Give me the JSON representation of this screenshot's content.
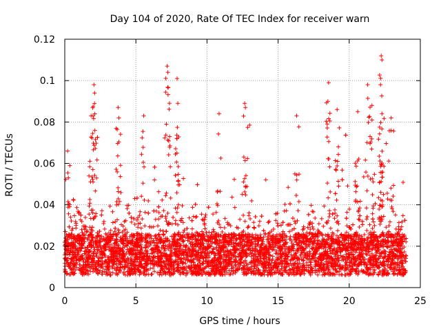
{
  "chart_data": {
    "type": "scatter",
    "title": "Day 104 of 2020, Rate Of TEC Index for receiver warn",
    "xlabel": "GPS time / hours",
    "ylabel": "ROTI / TECUs",
    "xlim": [
      0,
      25
    ],
    "ylim": [
      0,
      0.12
    ],
    "xticks": [
      0,
      5,
      10,
      15,
      20,
      25
    ],
    "yticks": [
      0,
      0.02,
      0.04,
      0.06,
      0.08,
      0.1,
      0.12
    ],
    "xtick_labels": [
      "0",
      "5",
      "10",
      "15",
      "20",
      "25"
    ],
    "ytick_labels": [
      "0",
      "0.02",
      "0.04",
      "0.06",
      "0.08",
      "0.1",
      "0.12"
    ],
    "grid": true,
    "marker": "+",
    "color": "#ff0000",
    "series": [
      {
        "name": "ROTI",
        "notable_peaks": [
          {
            "x": 0.2,
            "y": 0.066
          },
          {
            "x": 2.05,
            "y": 0.098
          },
          {
            "x": 2.1,
            "y": 0.094
          },
          {
            "x": 1.85,
            "y": 0.083
          },
          {
            "x": 3.75,
            "y": 0.087
          },
          {
            "x": 3.8,
            "y": 0.082
          },
          {
            "x": 5.55,
            "y": 0.083
          },
          {
            "x": 7.2,
            "y": 0.107
          },
          {
            "x": 7.25,
            "y": 0.104
          },
          {
            "x": 7.9,
            "y": 0.101
          },
          {
            "x": 7.95,
            "y": 0.089
          },
          {
            "x": 10.85,
            "y": 0.084
          },
          {
            "x": 12.65,
            "y": 0.089
          },
          {
            "x": 12.7,
            "y": 0.087
          },
          {
            "x": 16.3,
            "y": 0.083
          },
          {
            "x": 18.55,
            "y": 0.099
          },
          {
            "x": 18.5,
            "y": 0.09
          },
          {
            "x": 19.15,
            "y": 0.086
          },
          {
            "x": 20.6,
            "y": 0.085
          },
          {
            "x": 21.3,
            "y": 0.098
          },
          {
            "x": 21.6,
            "y": 0.088
          },
          {
            "x": 22.25,
            "y": 0.112
          },
          {
            "x": 22.3,
            "y": 0.11
          },
          {
            "x": 22.2,
            "y": 0.098
          },
          {
            "x": 22.3,
            "y": 0.084
          },
          {
            "x": 22.95,
            "y": 0.082
          }
        ],
        "baseline_range": [
          0.005,
          0.03
        ],
        "x_range_hours": [
          0,
          24
        ]
      }
    ]
  }
}
